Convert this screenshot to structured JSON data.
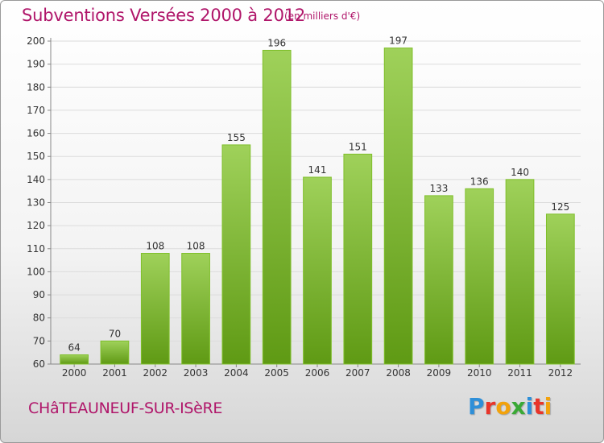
{
  "header": {
    "title": "Subventions Versées 2000 à 2012",
    "unit_note": "(en milliers d'€)"
  },
  "footer": {
    "commune": "CHâTEAUNEUF-SUR-ISèRE",
    "brand": "Proxiti",
    "brand_letters": [
      "P",
      "r",
      "o",
      "x",
      "i",
      "t",
      "i"
    ],
    "brand_colors": [
      "#2e8fd8",
      "#e8352a",
      "#f2a20c",
      "#3aa935",
      "#2e8fd8",
      "#e8352a",
      "#f2a20c"
    ]
  },
  "chart_data": {
    "type": "bar",
    "title": "Subventions Versées 2000 à 2012",
    "subtitle": "(en milliers d'€)",
    "xlabel": "",
    "ylabel": "",
    "categories": [
      "2000",
      "2001",
      "2002",
      "2003",
      "2004",
      "2005",
      "2006",
      "2007",
      "2008",
      "2009",
      "2010",
      "2011",
      "2012"
    ],
    "values": [
      64,
      70,
      108,
      108,
      155,
      196,
      141,
      151,
      197,
      133,
      136,
      140,
      125
    ],
    "ylim": [
      60,
      200
    ],
    "yticks": [
      60,
      70,
      80,
      90,
      100,
      110,
      120,
      130,
      140,
      150,
      160,
      170,
      180,
      190,
      200
    ],
    "grid": true,
    "bar_color_top": "#9fd15a",
    "bar_color_bottom": "#5f9a14",
    "bar_edge": "#7fbf2a"
  }
}
